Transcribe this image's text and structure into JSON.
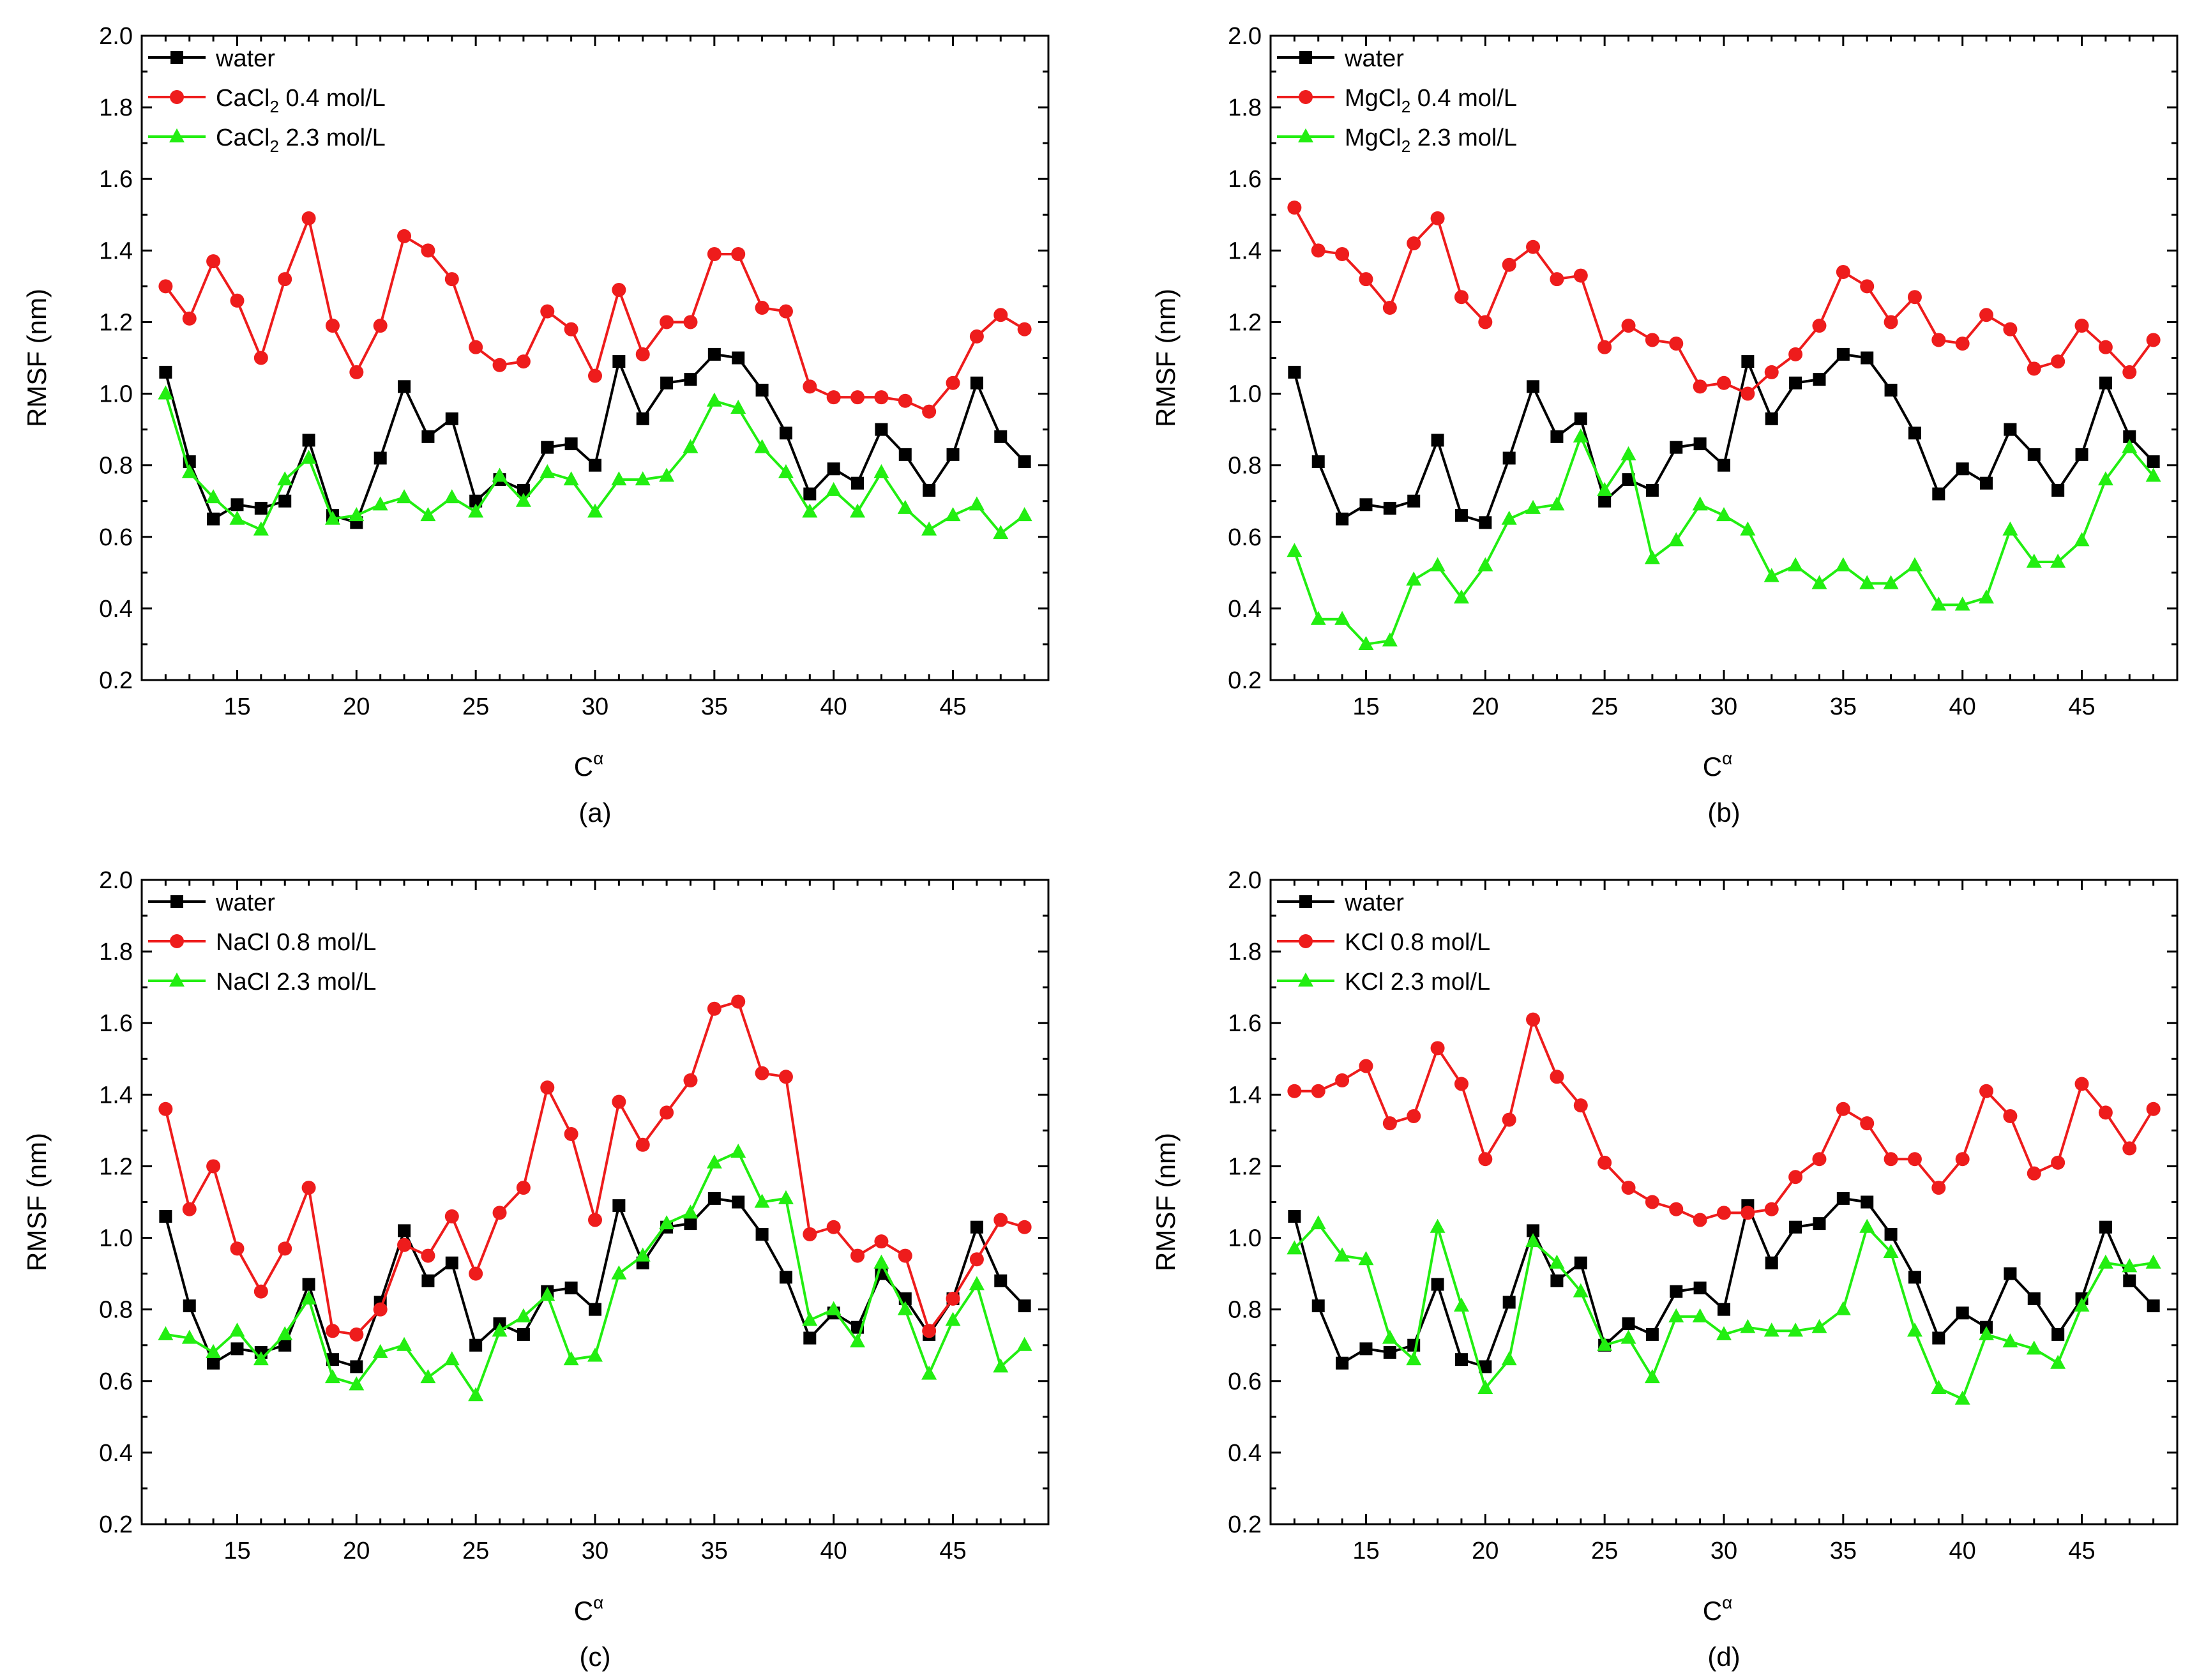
{
  "figure": {
    "colors": {
      "water": "#000000",
      "low": "#ee1c1c",
      "high": "#22ee11",
      "axis": "#000000"
    }
  },
  "chart_data": [
    {
      "id": "a",
      "type": "line",
      "caption": "(a)",
      "xlabel_base": "C",
      "xlabel_sup": "α",
      "ylabel": "RMSF (nm)",
      "xlim": [
        11,
        49
      ],
      "ylim": [
        0.2,
        2.0
      ],
      "xticks": [
        15,
        20,
        25,
        30,
        35,
        40,
        45
      ],
      "yticks": [
        0.2,
        0.4,
        0.6,
        0.8,
        1.0,
        1.2,
        1.4,
        1.6,
        1.8,
        2.0
      ],
      "ytick_labels": [
        "0.2",
        "0.4",
        "0.6",
        "0.8",
        "1.0",
        "1.2",
        "1.4",
        "1.6",
        "1.8",
        "2.0"
      ],
      "legend_position": "top-left",
      "x": [
        12,
        13,
        14,
        15,
        16,
        17,
        18,
        19,
        20,
        21,
        22,
        23,
        24,
        25,
        26,
        27,
        28,
        29,
        30,
        31,
        32,
        33,
        34,
        35,
        36,
        37,
        38,
        39,
        40,
        41,
        42,
        43,
        44,
        45,
        46,
        47,
        48
      ],
      "series": [
        {
          "name": "water",
          "label_main": "water",
          "label_sub": "",
          "label_tail": "",
          "marker": "square",
          "color": "#000000",
          "values": [
            1.06,
            0.81,
            0.65,
            0.69,
            0.68,
            0.7,
            0.87,
            0.66,
            0.64,
            0.82,
            1.02,
            0.88,
            0.93,
            0.7,
            0.76,
            0.73,
            0.85,
            0.86,
            0.8,
            1.09,
            0.93,
            1.03,
            1.04,
            1.11,
            1.1,
            1.01,
            0.89,
            0.72,
            0.79,
            0.75,
            0.9,
            0.83,
            0.73,
            0.83,
            1.03,
            0.88,
            0.81
          ]
        },
        {
          "name": "CaCl2 0.4 mol/L",
          "label_main": "CaCl",
          "label_sub": "2",
          "label_tail": " 0.4 mol/L",
          "marker": "circle",
          "color": "#ee1c1c",
          "values": [
            1.3,
            1.21,
            1.37,
            1.26,
            1.1,
            1.32,
            1.49,
            1.19,
            1.06,
            1.19,
            1.44,
            1.4,
            1.32,
            1.13,
            1.08,
            1.09,
            1.23,
            1.18,
            1.05,
            1.29,
            1.11,
            1.2,
            1.2,
            1.39,
            1.39,
            1.24,
            1.23,
            1.02,
            0.99,
            0.99,
            0.99,
            0.98,
            0.95,
            1.03,
            1.16,
            1.22,
            1.18
          ]
        },
        {
          "name": "CaCl2 2.3 mol/L",
          "label_main": "CaCl",
          "label_sub": "2",
          "label_tail": " 2.3 mol/L",
          "marker": "triangle",
          "color": "#22ee11",
          "values": [
            1.0,
            0.78,
            0.71,
            0.65,
            0.62,
            0.76,
            0.82,
            0.65,
            0.66,
            0.69,
            0.71,
            0.66,
            0.71,
            0.67,
            0.77,
            0.7,
            0.78,
            0.76,
            0.67,
            0.76,
            0.76,
            0.77,
            0.85,
            0.98,
            0.96,
            0.85,
            0.78,
            0.67,
            0.73,
            0.67,
            0.78,
            0.68,
            0.62,
            0.66,
            0.69,
            0.61,
            0.66
          ]
        }
      ]
    },
    {
      "id": "b",
      "type": "line",
      "caption": "(b)",
      "xlabel_base": "C",
      "xlabel_sup": "α",
      "ylabel": "RMSF (nm)",
      "xlim": [
        11,
        49
      ],
      "ylim": [
        0.2,
        2.0
      ],
      "xticks": [
        15,
        20,
        25,
        30,
        35,
        40,
        45
      ],
      "yticks": [
        0.2,
        0.4,
        0.6,
        0.8,
        1.0,
        1.2,
        1.4,
        1.6,
        1.8,
        2.0
      ],
      "ytick_labels": [
        "0.2",
        "0.4",
        "0.6",
        "0.8",
        "1.0",
        "1.2",
        "1.4",
        "1.6",
        "1.8",
        "2.0"
      ],
      "legend_position": "top-left",
      "x": [
        12,
        13,
        14,
        15,
        16,
        17,
        18,
        19,
        20,
        21,
        22,
        23,
        24,
        25,
        26,
        27,
        28,
        29,
        30,
        31,
        32,
        33,
        34,
        35,
        36,
        37,
        38,
        39,
        40,
        41,
        42,
        43,
        44,
        45,
        46,
        47,
        48
      ],
      "series": [
        {
          "name": "water",
          "label_main": "water",
          "label_sub": "",
          "label_tail": "",
          "marker": "square",
          "color": "#000000",
          "values": [
            1.06,
            0.81,
            0.65,
            0.69,
            0.68,
            0.7,
            0.87,
            0.66,
            0.64,
            0.82,
            1.02,
            0.88,
            0.93,
            0.7,
            0.76,
            0.73,
            0.85,
            0.86,
            0.8,
            1.09,
            0.93,
            1.03,
            1.04,
            1.11,
            1.1,
            1.01,
            0.89,
            0.72,
            0.79,
            0.75,
            0.9,
            0.83,
            0.73,
            0.83,
            1.03,
            0.88,
            0.81
          ]
        },
        {
          "name": "MgCl2 0.4 mol/L",
          "label_main": "MgCl",
          "label_sub": "2",
          "label_tail": " 0.4 mol/L",
          "marker": "circle",
          "color": "#ee1c1c",
          "values": [
            1.52,
            1.4,
            1.39,
            1.32,
            1.24,
            1.42,
            1.49,
            1.27,
            1.2,
            1.36,
            1.41,
            1.32,
            1.33,
            1.13,
            1.19,
            1.15,
            1.14,
            1.02,
            1.03,
            1.0,
            1.06,
            1.11,
            1.19,
            1.34,
            1.3,
            1.2,
            1.27,
            1.15,
            1.14,
            1.22,
            1.18,
            1.07,
            1.09,
            1.19,
            1.13,
            1.06,
            1.15
          ]
        },
        {
          "name": "MgCl2 2.3 mol/L",
          "label_main": "MgCl",
          "label_sub": "2",
          "label_tail": " 2.3 mol/L",
          "marker": "triangle",
          "color": "#22ee11",
          "values": [
            0.56,
            0.37,
            0.37,
            0.3,
            0.31,
            0.48,
            0.52,
            0.43,
            0.52,
            0.65,
            0.68,
            0.69,
            0.88,
            0.73,
            0.83,
            0.54,
            0.59,
            0.69,
            0.66,
            0.62,
            0.49,
            0.52,
            0.47,
            0.52,
            0.47,
            0.47,
            0.52,
            0.41,
            0.41,
            0.43,
            0.62,
            0.53,
            0.53,
            0.59,
            0.76,
            0.85,
            0.77
          ]
        }
      ]
    },
    {
      "id": "c",
      "type": "line",
      "caption": "(c)",
      "xlabel_base": "C",
      "xlabel_sup": "α",
      "ylabel": "RMSF (nm)",
      "xlim": [
        11,
        49
      ],
      "ylim": [
        0.2,
        2.0
      ],
      "xticks": [
        15,
        20,
        25,
        30,
        35,
        40,
        45
      ],
      "yticks": [
        0.2,
        0.4,
        0.6,
        0.8,
        1.0,
        1.2,
        1.4,
        1.6,
        1.8,
        2.0
      ],
      "ytick_labels": [
        "0.2",
        "0.4",
        "0.6",
        "0.8",
        "1.0",
        "1.2",
        "1.4",
        "1.6",
        "1.8",
        "2.0"
      ],
      "legend_position": "top-left",
      "x": [
        12,
        13,
        14,
        15,
        16,
        17,
        18,
        19,
        20,
        21,
        22,
        23,
        24,
        25,
        26,
        27,
        28,
        29,
        30,
        31,
        32,
        33,
        34,
        35,
        36,
        37,
        38,
        39,
        40,
        41,
        42,
        43,
        44,
        45,
        46,
        47,
        48
      ],
      "series": [
        {
          "name": "water",
          "label_main": "water",
          "label_sub": "",
          "label_tail": "",
          "marker": "square",
          "color": "#000000",
          "values": [
            1.06,
            0.81,
            0.65,
            0.69,
            0.68,
            0.7,
            0.87,
            0.66,
            0.64,
            0.82,
            1.02,
            0.88,
            0.93,
            0.7,
            0.76,
            0.73,
            0.85,
            0.86,
            0.8,
            1.09,
            0.93,
            1.03,
            1.04,
            1.11,
            1.1,
            1.01,
            0.89,
            0.72,
            0.79,
            0.75,
            0.9,
            0.83,
            0.73,
            0.83,
            1.03,
            0.88,
            0.81
          ]
        },
        {
          "name": "NaCl 0.8 mol/L",
          "label_main": "NaCl 0.8 mol/L",
          "label_sub": "",
          "label_tail": "",
          "marker": "circle",
          "color": "#ee1c1c",
          "values": [
            1.36,
            1.08,
            1.2,
            0.97,
            0.85,
            0.97,
            1.14,
            0.74,
            0.73,
            0.8,
            0.98,
            0.95,
            1.06,
            0.9,
            1.07,
            1.14,
            1.42,
            1.29,
            1.05,
            1.38,
            1.26,
            1.35,
            1.44,
            1.64,
            1.66,
            1.46,
            1.45,
            1.01,
            1.03,
            0.95,
            0.99,
            0.95,
            0.74,
            0.83,
            0.94,
            1.05,
            1.03
          ]
        },
        {
          "name": "NaCl 2.3 mol/L",
          "label_main": "NaCl 2.3 mol/L",
          "label_sub": "",
          "label_tail": "",
          "marker": "triangle",
          "color": "#22ee11",
          "values": [
            0.73,
            0.72,
            0.68,
            0.74,
            0.66,
            0.73,
            0.83,
            0.61,
            0.59,
            0.68,
            0.7,
            0.61,
            0.66,
            0.56,
            0.74,
            0.78,
            0.84,
            0.66,
            0.67,
            0.9,
            0.95,
            1.04,
            1.07,
            1.21,
            1.24,
            1.1,
            1.11,
            0.77,
            0.8,
            0.71,
            0.93,
            0.8,
            0.62,
            0.77,
            0.87,
            0.64,
            0.7
          ]
        }
      ]
    },
    {
      "id": "d",
      "type": "line",
      "caption": "(d)",
      "xlabel_base": "C",
      "xlabel_sup": "α",
      "ylabel": "RMSF (nm)",
      "xlim": [
        11,
        49
      ],
      "ylim": [
        0.2,
        2.0
      ],
      "xticks": [
        15,
        20,
        25,
        30,
        35,
        40,
        45
      ],
      "yticks": [
        0.2,
        0.4,
        0.6,
        0.8,
        1.0,
        1.2,
        1.4,
        1.6,
        1.8,
        2.0
      ],
      "ytick_labels": [
        "0.2",
        "0.4",
        "0.6",
        "0.8",
        "1.0",
        "1.2",
        "1.4",
        "1.6",
        "1.8",
        "2.0"
      ],
      "legend_position": "top-left",
      "x": [
        12,
        13,
        14,
        15,
        16,
        17,
        18,
        19,
        20,
        21,
        22,
        23,
        24,
        25,
        26,
        27,
        28,
        29,
        30,
        31,
        32,
        33,
        34,
        35,
        36,
        37,
        38,
        39,
        40,
        41,
        42,
        43,
        44,
        45,
        46,
        47,
        48
      ],
      "series": [
        {
          "name": "water",
          "label_main": "water",
          "label_sub": "",
          "label_tail": "",
          "marker": "square",
          "color": "#000000",
          "values": [
            1.06,
            0.81,
            0.65,
            0.69,
            0.68,
            0.7,
            0.87,
            0.66,
            0.64,
            0.82,
            1.02,
            0.88,
            0.93,
            0.7,
            0.76,
            0.73,
            0.85,
            0.86,
            0.8,
            1.09,
            0.93,
            1.03,
            1.04,
            1.11,
            1.1,
            1.01,
            0.89,
            0.72,
            0.79,
            0.75,
            0.9,
            0.83,
            0.73,
            0.83,
            1.03,
            0.88,
            0.81
          ]
        },
        {
          "name": "KCl 0.8 mol/L",
          "label_main": "KCl 0.8 mol/L",
          "label_sub": "",
          "label_tail": "",
          "marker": "circle",
          "color": "#ee1c1c",
          "values": [
            1.41,
            1.41,
            1.44,
            1.48,
            1.32,
            1.34,
            1.53,
            1.43,
            1.22,
            1.33,
            1.61,
            1.45,
            1.37,
            1.21,
            1.14,
            1.1,
            1.08,
            1.05,
            1.07,
            1.07,
            1.08,
            1.17,
            1.22,
            1.36,
            1.32,
            1.22,
            1.22,
            1.14,
            1.22,
            1.41,
            1.34,
            1.18,
            1.21,
            1.43,
            1.35,
            1.25,
            1.36
          ]
        },
        {
          "name": "KCl 2.3 mol/L",
          "label_main": "KCl 2.3 mol/L",
          "label_sub": "",
          "label_tail": "",
          "marker": "triangle",
          "color": "#22ee11",
          "values": [
            0.97,
            1.04,
            0.95,
            0.94,
            0.72,
            0.66,
            1.03,
            0.81,
            0.58,
            0.66,
            0.99,
            0.93,
            0.85,
            0.7,
            0.72,
            0.61,
            0.78,
            0.78,
            0.73,
            0.75,
            0.74,
            0.74,
            0.75,
            0.8,
            1.03,
            0.96,
            0.74,
            0.58,
            0.55,
            0.73,
            0.71,
            0.69,
            0.65,
            0.81,
            0.93,
            0.92,
            0.93
          ]
        }
      ]
    }
  ]
}
